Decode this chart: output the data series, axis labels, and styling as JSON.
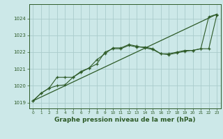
{
  "x": [
    0,
    1,
    2,
    3,
    4,
    5,
    6,
    7,
    8,
    9,
    10,
    11,
    12,
    13,
    14,
    15,
    16,
    17,
    18,
    19,
    20,
    21,
    22,
    23
  ],
  "line1": [
    1019.1,
    1019.55,
    1019.85,
    1020.5,
    1020.5,
    1020.5,
    1020.85,
    1021.05,
    1021.55,
    1021.9,
    1022.25,
    1022.25,
    1022.45,
    1022.35,
    1022.25,
    1022.15,
    1021.9,
    1021.85,
    1021.95,
    1022.05,
    1022.1,
    1022.2,
    1024.1,
    1024.25
  ],
  "line2": [
    1019.1,
    1019.55,
    1019.85,
    1020.0,
    1020.05,
    1020.5,
    1020.8,
    1021.05,
    1021.3,
    1022.0,
    1022.2,
    1022.2,
    1022.4,
    1022.3,
    1022.3,
    1022.2,
    1021.9,
    1021.9,
    1022.0,
    1022.1,
    1022.1,
    1022.2,
    1022.2,
    1024.2
  ],
  "line3_x": [
    0,
    23
  ],
  "line3_y": [
    1019.1,
    1024.25
  ],
  "bg_color": "#cce8e8",
  "line_color": "#2d5a27",
  "grid_color": "#aacccc",
  "ylabel_ticks": [
    1019,
    1020,
    1021,
    1022,
    1023,
    1024
  ],
  "xlabel": "Graphe pression niveau de la mer (hPa)",
  "ymin": 1018.65,
  "ymax": 1024.85,
  "xmin": -0.5,
  "xmax": 23.5
}
